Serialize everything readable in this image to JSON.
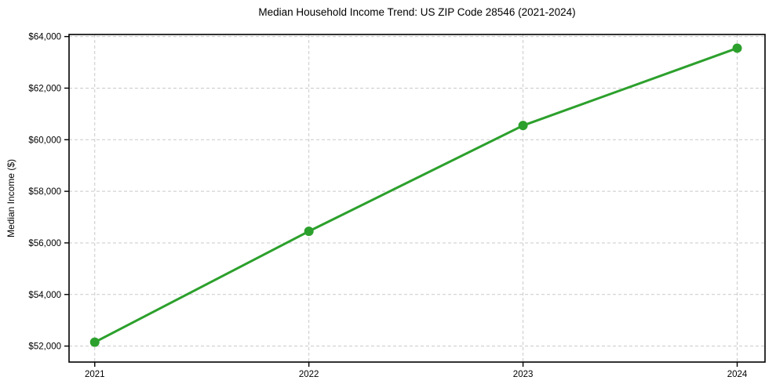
{
  "figure": {
    "background": "#ffffff"
  },
  "chart_data": {
    "type": "line",
    "title": "Median Household Income Trend: US ZIP Code 28546 (2021-2024)",
    "xlabel": "",
    "ylabel": "Median Income ($)",
    "x": [
      2021,
      2022,
      2023,
      2024
    ],
    "x_tick_labels": [
      "2021",
      "2022",
      "2023",
      "2024"
    ],
    "series": [
      {
        "name": "Median Household Income",
        "values": [
          52150,
          56450,
          60550,
          63550
        ]
      }
    ],
    "y_ticks": [
      52000,
      54000,
      56000,
      58000,
      60000,
      62000,
      64000
    ],
    "y_tick_labels": [
      "$52,000",
      "$54,000",
      "$56,000",
      "$58,000",
      "$60,000",
      "$62,000",
      "$64,000"
    ],
    "ylim": [
      51380,
      64080
    ],
    "xlim": [
      2020.88,
      2024.13
    ],
    "grid": "dashed-both-axes",
    "legend": "none",
    "colors": {
      "line": "#2ca02c",
      "marker": "#2ca02c",
      "grid": "#c9c9c9",
      "axis": "#000000",
      "text": "#000000",
      "background": "#ffffff"
    },
    "style": {
      "line_width": 3,
      "marker_radius": 6,
      "marker_shape": "circle",
      "plot_border": "full-box"
    }
  }
}
